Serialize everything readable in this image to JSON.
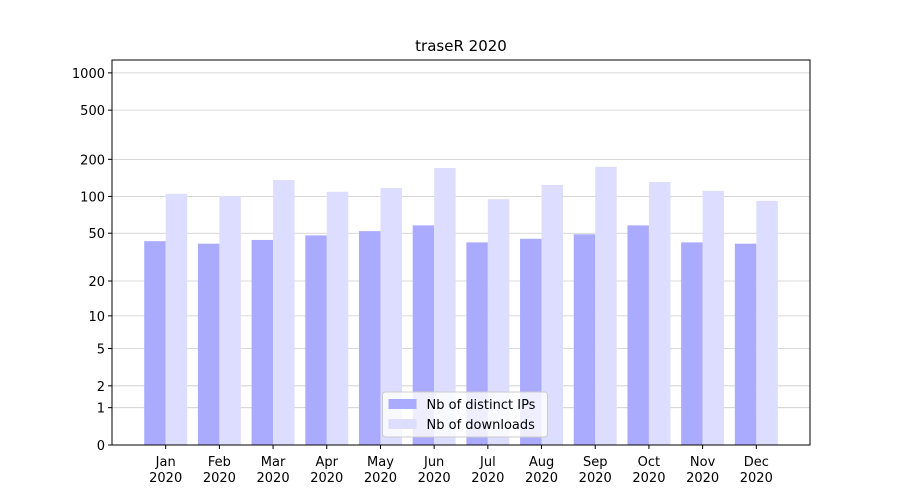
{
  "chart_data": {
    "type": "bar",
    "title": "traseR 2020",
    "categories": [
      "Jan 2020",
      "Feb 2020",
      "Mar 2020",
      "Apr 2020",
      "May 2020",
      "Jun 2020",
      "Jul 2020",
      "Aug 2020",
      "Sep 2020",
      "Oct 2020",
      "Nov 2020",
      "Dec 2020"
    ],
    "series": [
      {
        "name": "Nb of distinct IPs",
        "color": "#aaaaff",
        "values": [
          43,
          41,
          44,
          48,
          52,
          58,
          42,
          45,
          49,
          58,
          42,
          41
        ]
      },
      {
        "name": "Nb of downloads",
        "color": "#ddddff",
        "values": [
          105,
          101,
          136,
          109,
          117,
          170,
          95,
          124,
          174,
          131,
          111,
          92
        ]
      }
    ],
    "yscale": "log1p",
    "ylim": [
      0,
      1270
    ],
    "yticks": [
      0,
      1,
      2,
      5,
      10,
      20,
      50,
      100,
      200,
      500,
      1000
    ],
    "grid": true,
    "legend": "lower center"
  }
}
